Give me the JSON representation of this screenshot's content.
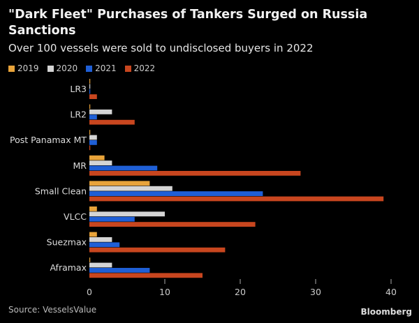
{
  "chart_data": {
    "type": "bar",
    "orientation": "horizontal",
    "title": "\"Dark Fleet\" Purchases of Tankers Surged on Russia Sanctions",
    "subtitle": "Over 100 vessels were sold to undisclosed buyers in 2022",
    "categories": [
      "LR3",
      "LR2",
      "Post Panamax MT",
      "MR",
      "Small Clean",
      "VLCC",
      "Suezmax",
      "Aframax"
    ],
    "series": [
      {
        "name": "2019",
        "color": "#e8a33a",
        "values": [
          0,
          0,
          0,
          2,
          8,
          1,
          1,
          0
        ]
      },
      {
        "name": "2020",
        "color": "#d4d4d4",
        "values": [
          0,
          3,
          1,
          3,
          11,
          10,
          3,
          3
        ]
      },
      {
        "name": "2021",
        "color": "#1f5fd6",
        "values": [
          0,
          1,
          1,
          9,
          23,
          6,
          4,
          8
        ]
      },
      {
        "name": "2022",
        "color": "#c8461f",
        "values": [
          1,
          6,
          0,
          28,
          39,
          22,
          18,
          15
        ]
      }
    ],
    "xlim": [
      0,
      40
    ],
    "xticks": [
      "0",
      "10",
      "20",
      "30",
      "40"
    ],
    "legend_position": "top-left",
    "grid": false
  },
  "footer": {
    "source": "Source: VesselsValue",
    "brand": "Bloomberg"
  }
}
